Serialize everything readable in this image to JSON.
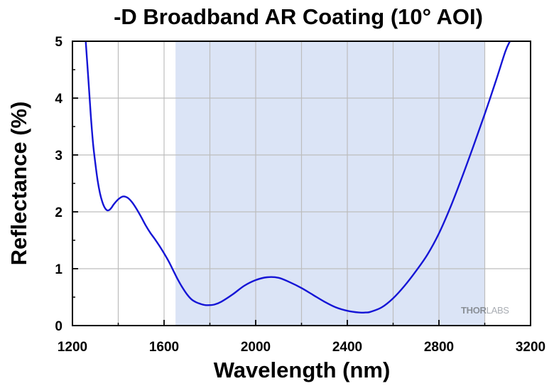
{
  "chart_data": {
    "type": "line",
    "title": "-D Broadband AR Coating (10° AOI)",
    "xlabel": "Wavelength (nm)",
    "ylabel": "Reflectance (%)",
    "xlim": [
      1200,
      3200
    ],
    "ylim": [
      0,
      5
    ],
    "xticks": [
      1200,
      1600,
      2000,
      2400,
      2800,
      3200
    ],
    "yticks": [
      0,
      1,
      2,
      3,
      4,
      5
    ],
    "grid": true,
    "shaded_band": {
      "x_start": 1650,
      "x_end": 3000,
      "color": "#dbe4f6"
    },
    "series": [
      {
        "name": "Reflectance",
        "color": "#1515d6",
        "x": [
          1258,
          1270,
          1280,
          1290,
          1300,
          1310,
          1320,
          1330,
          1340,
          1350,
          1360,
          1370,
          1380,
          1400,
          1420,
          1440,
          1460,
          1480,
          1500,
          1520,
          1540,
          1560,
          1580,
          1600,
          1620,
          1640,
          1660,
          1680,
          1700,
          1720,
          1740,
          1760,
          1780,
          1800,
          1820,
          1850,
          1900,
          1950,
          2000,
          2050,
          2100,
          2150,
          2200,
          2250,
          2300,
          2350,
          2400,
          2450,
          2480,
          2500,
          2550,
          2600,
          2650,
          2700,
          2750,
          2800,
          2850,
          2900,
          2950,
          3000,
          3050,
          3090,
          3110
        ],
        "y": [
          5.0,
          4.3,
          3.7,
          3.2,
          2.85,
          2.55,
          2.33,
          2.18,
          2.08,
          2.03,
          2.03,
          2.07,
          2.13,
          2.22,
          2.27,
          2.25,
          2.17,
          2.05,
          1.91,
          1.76,
          1.63,
          1.52,
          1.4,
          1.27,
          1.13,
          0.97,
          0.81,
          0.67,
          0.55,
          0.46,
          0.41,
          0.38,
          0.36,
          0.36,
          0.37,
          0.42,
          0.55,
          0.7,
          0.8,
          0.85,
          0.84,
          0.76,
          0.66,
          0.54,
          0.42,
          0.32,
          0.26,
          0.23,
          0.23,
          0.24,
          0.32,
          0.48,
          0.7,
          0.96,
          1.25,
          1.62,
          2.08,
          2.6,
          3.15,
          3.72,
          4.32,
          4.82,
          5.0
        ]
      }
    ]
  },
  "logo": {
    "text_main": "THOR",
    "text_light": "LABS"
  }
}
